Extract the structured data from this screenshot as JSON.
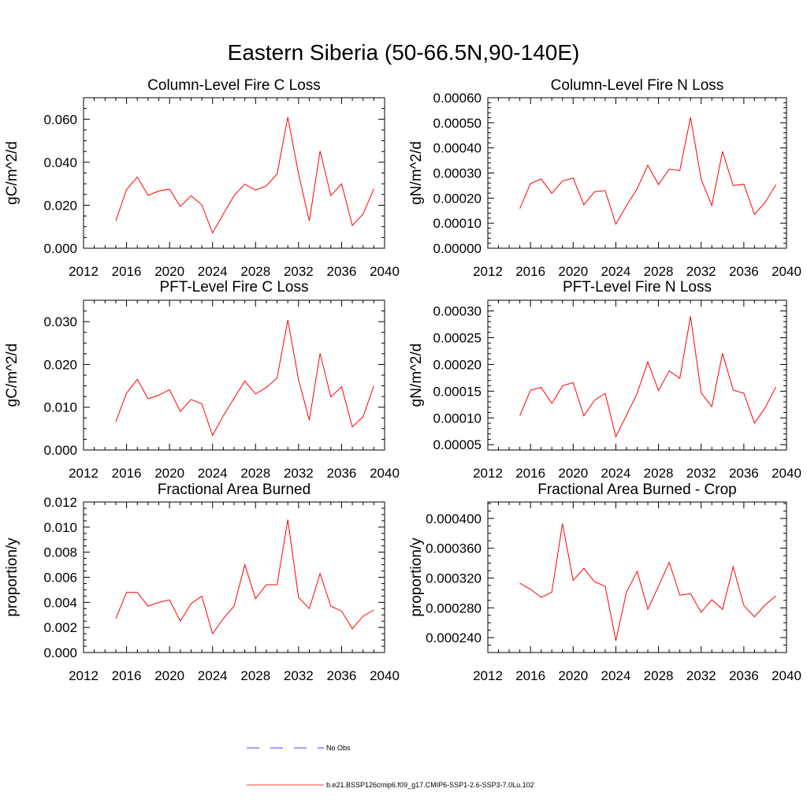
{
  "page": {
    "title": "Eastern Siberia (50-66.5N,90-140E)"
  },
  "legend": {
    "entries": [
      {
        "label": "No Obs",
        "color": "#0000ff",
        "style": "dashed"
      },
      {
        "label": "b.e21.BSSP126cmip6.f09_g17.CMIP6-SSP1-2.6-SSP3-7.0Lu.102",
        "color": "#ff0000",
        "style": "solid"
      }
    ]
  },
  "chart_data": [
    {
      "type": "line",
      "title": "Column-Level Fire C Loss",
      "ylabel": "gC/m^2/d",
      "xlim": [
        2012,
        2040
      ],
      "ylim": [
        0,
        0.07
      ],
      "xticks": [
        2012,
        2016,
        2020,
        2024,
        2028,
        2032,
        2036,
        2040
      ],
      "xtick_labels": [
        "2012",
        "2016",
        "2020",
        "2024",
        "2028",
        "2032",
        "2036",
        "2040"
      ],
      "yticks": [
        0,
        0.02,
        0.04,
        0.06
      ],
      "ytick_labels": [
        "0.000",
        "0.020",
        "0.040",
        "0.060"
      ],
      "yminor": 0.005,
      "series": [
        {
          "color": "#ff0000",
          "x": [
            2015,
            2016,
            2017,
            2018,
            2019,
            2020,
            2021,
            2022,
            2023,
            2024,
            2025,
            2026,
            2027,
            2028,
            2029,
            2030,
            2031,
            2032,
            2033,
            2034,
            2035,
            2036,
            2037,
            2038,
            2039
          ],
          "y": [
            0.0127,
            0.0273,
            0.0331,
            0.0246,
            0.0266,
            0.0275,
            0.0194,
            0.0244,
            0.0202,
            0.0071,
            0.0159,
            0.0245,
            0.0298,
            0.027,
            0.029,
            0.0345,
            0.061,
            0.0345,
            0.0127,
            0.0452,
            0.0245,
            0.03,
            0.0106,
            0.0159,
            0.0276
          ]
        }
      ]
    },
    {
      "type": "line",
      "title": "Column-Level Fire N Loss",
      "ylabel": "gN/m^2/d",
      "xlim": [
        2012,
        2040
      ],
      "ylim": [
        0,
        0.0006
      ],
      "xticks": [
        2012,
        2016,
        2020,
        2024,
        2028,
        2032,
        2036,
        2040
      ],
      "xtick_labels": [
        "2012",
        "2016",
        "2020",
        "2024",
        "2028",
        "2032",
        "2036",
        "2040"
      ],
      "yticks": [
        0,
        0.0001,
        0.0002,
        0.0003,
        0.0004,
        0.0005,
        0.0006
      ],
      "ytick_labels": [
        "0.00000",
        "0.00010",
        "0.00020",
        "0.00030",
        "0.00040",
        "0.00050",
        "0.00060"
      ],
      "yminor": 2e-05,
      "series": [
        {
          "color": "#ff0000",
          "x": [
            2015,
            2016,
            2017,
            2018,
            2019,
            2020,
            2021,
            2022,
            2023,
            2024,
            2025,
            2026,
            2027,
            2028,
            2029,
            2030,
            2031,
            2032,
            2033,
            2034,
            2035,
            2036,
            2037,
            2038,
            2039
          ],
          "y": [
            0.000158,
            0.000258,
            0.000276,
            0.000219,
            0.000268,
            0.00028,
            0.000173,
            0.000225,
            0.00023,
            9.6e-05,
            0.00017,
            0.000237,
            0.000331,
            0.000254,
            0.000315,
            0.00031,
            0.000522,
            0.000275,
            0.00017,
            0.000386,
            0.00025,
            0.000255,
            0.000135,
            0.000183,
            0.000253
          ]
        }
      ]
    },
    {
      "type": "line",
      "title": "PFT-Level Fire C Loss",
      "ylabel": "gC/m^2/d",
      "xlim": [
        2012,
        2040
      ],
      "ylim": [
        0,
        0.035
      ],
      "xticks": [
        2012,
        2016,
        2020,
        2024,
        2028,
        2032,
        2036,
        2040
      ],
      "xtick_labels": [
        "2012",
        "2016",
        "2020",
        "2024",
        "2028",
        "2032",
        "2036",
        "2040"
      ],
      "yticks": [
        0,
        0.01,
        0.02,
        0.03
      ],
      "ytick_labels": [
        "0.000",
        "0.010",
        "0.020",
        "0.030"
      ],
      "yminor": 0.0025,
      "series": [
        {
          "color": "#ff0000",
          "x": [
            2015,
            2016,
            2017,
            2018,
            2019,
            2020,
            2021,
            2022,
            2023,
            2024,
            2025,
            2026,
            2027,
            2028,
            2029,
            2030,
            2031,
            2032,
            2033,
            2034,
            2035,
            2036,
            2037,
            2038,
            2039
          ],
          "y": [
            0.0066,
            0.0133,
            0.0165,
            0.012,
            0.0128,
            0.0141,
            0.009,
            0.0118,
            0.0108,
            0.0034,
            0.008,
            0.0121,
            0.0161,
            0.0131,
            0.0146,
            0.0168,
            0.0304,
            0.0164,
            0.007,
            0.0226,
            0.0124,
            0.0148,
            0.0054,
            0.0078,
            0.015
          ]
        }
      ]
    },
    {
      "type": "line",
      "title": "PFT-Level Fire N Loss",
      "ylabel": "gN/m^2/d",
      "xlim": [
        2012,
        2040
      ],
      "ylim": [
        4e-05,
        0.00032
      ],
      "xticks": [
        2012,
        2016,
        2020,
        2024,
        2028,
        2032,
        2036,
        2040
      ],
      "xtick_labels": [
        "2012",
        "2016",
        "2020",
        "2024",
        "2028",
        "2032",
        "2036",
        "2040"
      ],
      "yticks": [
        5e-05,
        0.0001,
        0.00015,
        0.0002,
        0.00025,
        0.0003
      ],
      "ytick_labels": [
        "0.00005",
        "0.00010",
        "0.00015",
        "0.00020",
        "0.00025",
        "0.00030"
      ],
      "yminor": 1e-05,
      "series": [
        {
          "color": "#ff0000",
          "x": [
            2015,
            2016,
            2017,
            2018,
            2019,
            2020,
            2021,
            2022,
            2023,
            2024,
            2025,
            2026,
            2027,
            2028,
            2029,
            2030,
            2031,
            2032,
            2033,
            2034,
            2035,
            2036,
            2037,
            2038,
            2039
          ],
          "y": [
            0.000104,
            0.000152,
            0.000157,
            0.000127,
            0.00016,
            0.000166,
            0.000104,
            0.000133,
            0.000146,
            6.5e-05,
            0.000105,
            0.000146,
            0.000205,
            0.000151,
            0.000188,
            0.000174,
            0.00029,
            0.000147,
            0.000121,
            0.000221,
            0.000152,
            0.000146,
            9e-05,
            0.000119,
            0.000158
          ]
        }
      ]
    },
    {
      "type": "line",
      "title": "Fractional Area Burned",
      "ylabel": "proportion/y",
      "xlim": [
        2012,
        2040
      ],
      "ylim": [
        0,
        0.012
      ],
      "xticks": [
        2012,
        2016,
        2020,
        2024,
        2028,
        2032,
        2036,
        2040
      ],
      "xtick_labels": [
        "2012",
        "2016",
        "2020",
        "2024",
        "2028",
        "2032",
        "2036",
        "2040"
      ],
      "yticks": [
        0,
        0.002,
        0.004,
        0.006,
        0.008,
        0.01,
        0.012
      ],
      "ytick_labels": [
        "0.000",
        "0.002",
        "0.004",
        "0.006",
        "0.008",
        "0.010",
        "0.012"
      ],
      "yminor": 0.0005,
      "series": [
        {
          "color": "#ff0000",
          "x": [
            2015,
            2016,
            2017,
            2018,
            2019,
            2020,
            2021,
            2022,
            2023,
            2024,
            2025,
            2026,
            2027,
            2028,
            2029,
            2030,
            2031,
            2032,
            2033,
            2034,
            2035,
            2036,
            2037,
            2038,
            2039
          ],
          "y": [
            0.0027,
            0.0048,
            0.0048,
            0.0037,
            0.004,
            0.0042,
            0.0025,
            0.0039,
            0.0045,
            0.0015,
            0.0027,
            0.0037,
            0.007,
            0.0043,
            0.0054,
            0.0054,
            0.0106,
            0.0044,
            0.0035,
            0.0063,
            0.0037,
            0.0033,
            0.0019,
            0.0029,
            0.0034
          ]
        }
      ]
    },
    {
      "type": "line",
      "title": "Fractional Area Burned - Crop",
      "ylabel": "proportion/y",
      "xlim": [
        2012,
        2040
      ],
      "ylim": [
        0.00022,
        0.000422
      ],
      "xticks": [
        2012,
        2016,
        2020,
        2024,
        2028,
        2032,
        2036,
        2040
      ],
      "xtick_labels": [
        "2012",
        "2016",
        "2020",
        "2024",
        "2028",
        "2032",
        "2036",
        "2040"
      ],
      "yticks": [
        0.00024,
        0.00028,
        0.00032,
        0.00036,
        0.0004
      ],
      "ytick_labels": [
        "0.000240",
        "0.000280",
        "0.000320",
        "0.000360",
        "0.000400"
      ],
      "yminor": 1e-05,
      "series": [
        {
          "color": "#ff0000",
          "x": [
            2015,
            2016,
            2017,
            2018,
            2019,
            2020,
            2021,
            2022,
            2023,
            2024,
            2025,
            2026,
            2027,
            2028,
            2029,
            2030,
            2031,
            2032,
            2033,
            2034,
            2035,
            2036,
            2037,
            2038,
            2039
          ],
          "y": [
            0.000313,
            0.000305,
            0.000294,
            0.000301,
            0.000393,
            0.000317,
            0.000333,
            0.000315,
            0.000309,
            0.000236,
            0.000301,
            0.000329,
            0.000278,
            0.000309,
            0.000341,
            0.000297,
            0.000299,
            0.000274,
            0.000291,
            0.000278,
            0.000335,
            0.000283,
            0.000268,
            0.000284,
            0.000296
          ]
        }
      ]
    }
  ]
}
